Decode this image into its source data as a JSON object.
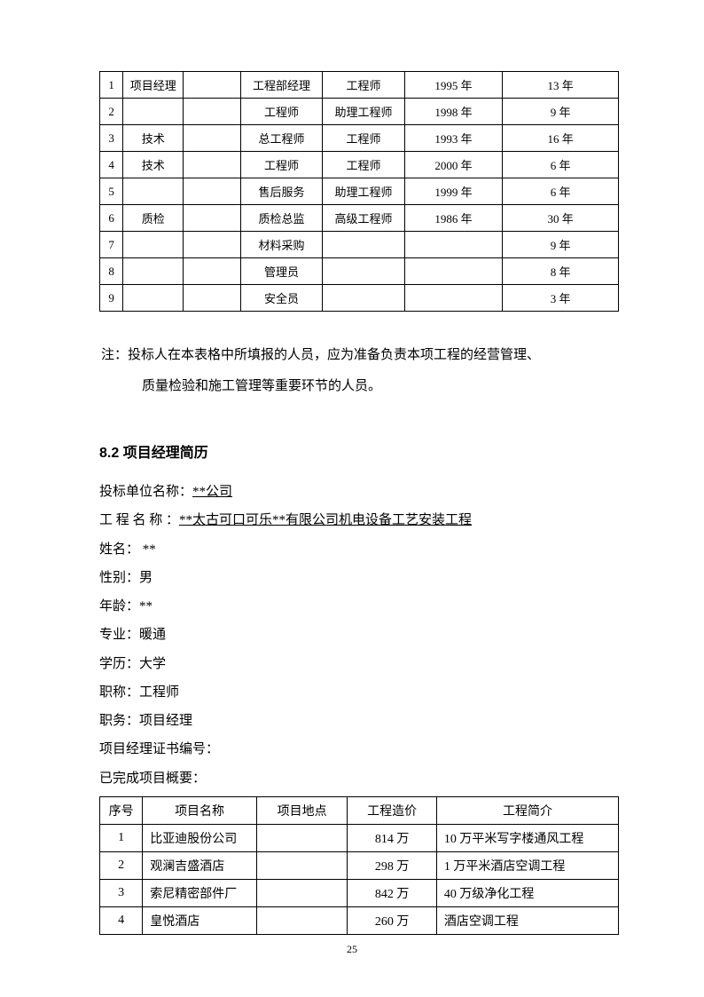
{
  "table1": {
    "rows": [
      {
        "idx": "1",
        "role": "项目经理",
        "blank": "",
        "title": "工程部经理",
        "level": "工程师",
        "year": "1995 年",
        "exp": "13 年"
      },
      {
        "idx": "2",
        "role": "",
        "blank": "",
        "title": "工程师",
        "level": "助理工程师",
        "year": "1998 年",
        "exp": "9 年"
      },
      {
        "idx": "3",
        "role": "技术",
        "blank": "",
        "title": "总工程师",
        "level": "工程师",
        "year": "1993 年",
        "exp": "16 年"
      },
      {
        "idx": "4",
        "role": "技术",
        "blank": "",
        "title": "工程师",
        "level": "工程师",
        "year": "2000 年",
        "exp": "6 年"
      },
      {
        "idx": "5",
        "role": "",
        "blank": "",
        "title": "售后服务",
        "level": "助理工程师",
        "year": "1999 年",
        "exp": "6 年"
      },
      {
        "idx": "6",
        "role": "质检",
        "blank": "",
        "title": "质检总监",
        "level": "高级工程师",
        "year": "1986 年",
        "exp": "30 年"
      },
      {
        "idx": "7",
        "role": "",
        "blank": "",
        "title": "材料采购",
        "level": "",
        "year": "",
        "exp": "9 年"
      },
      {
        "idx": "8",
        "role": "",
        "blank": "",
        "title": "管理员",
        "level": "",
        "year": "",
        "exp": "8 年"
      },
      {
        "idx": "9",
        "role": "",
        "blank": "",
        "title": "安全员",
        "level": "",
        "year": "",
        "exp": "3 年"
      }
    ]
  },
  "note": {
    "line1": "注：投标人在本表格中所填报的人员，应为准备负责本项工程的经营管理、",
    "line2": "质量检验和施工管理等重要环节的人员。"
  },
  "section_title": "8.2 项目经理简历",
  "info": {
    "company_label": "投标单位名称：",
    "company_value": "**公司",
    "project_label": "工 程 名 称 ：",
    "project_value": "**太古可口可乐**有限公司机电设备工艺安装工程",
    "name": "姓名： **",
    "gender": "性别：男",
    "age": "年龄：**",
    "major": "专业：暖通",
    "education": "学历：大学",
    "title": "职称：工程师",
    "position": "职务：项目经理",
    "cert": "项目经理证书编号：",
    "completed": "已完成项目概要："
  },
  "table2": {
    "headers": {
      "idx": "序号",
      "name": "项目名称",
      "loc": "项目地点",
      "cost": "工程造价",
      "desc": "工程简介"
    },
    "rows": [
      {
        "idx": "1",
        "name": "比亚迪股份公司",
        "loc": "",
        "cost": "814 万",
        "desc": "10 万平米写字楼通风工程"
      },
      {
        "idx": "2",
        "name": "观澜吉盛酒店",
        "loc": "",
        "cost": "298 万",
        "desc": "1 万平米酒店空调工程"
      },
      {
        "idx": "3",
        "name": "索尼精密部件厂",
        "loc": "",
        "cost": "842 万",
        "desc": "40 万级净化工程"
      },
      {
        "idx": "4",
        "name": "皇悦酒店",
        "loc": "",
        "cost": "260 万",
        "desc": "酒店空调工程"
      }
    ]
  },
  "page_number": "25"
}
